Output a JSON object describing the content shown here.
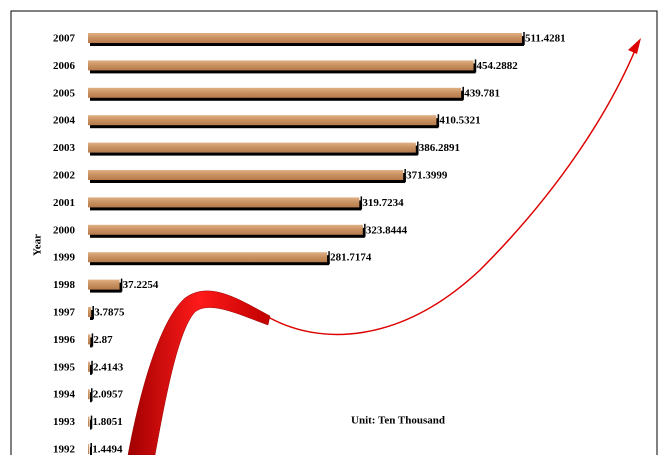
{
  "chart_data": {
    "type": "bar",
    "orientation": "horizontal",
    "y_label": "Year",
    "annotation": "Unit: Ten Thousand",
    "categories": [
      "2007",
      "2006",
      "2005",
      "2004",
      "2003",
      "2002",
      "2001",
      "2000",
      "1999",
      "1998",
      "1997",
      "1996",
      "1995",
      "1994",
      "1993",
      "1992"
    ],
    "values": [
      511.4281,
      454.2882,
      439.781,
      410.5321,
      386.2891,
      371.3999,
      319.7234,
      323.8444,
      281.7174,
      37.2254,
      3.7875,
      2.87,
      2.4143,
      2.0957,
      1.8051,
      1.4494
    ],
    "color": "#c8905f"
  }
}
